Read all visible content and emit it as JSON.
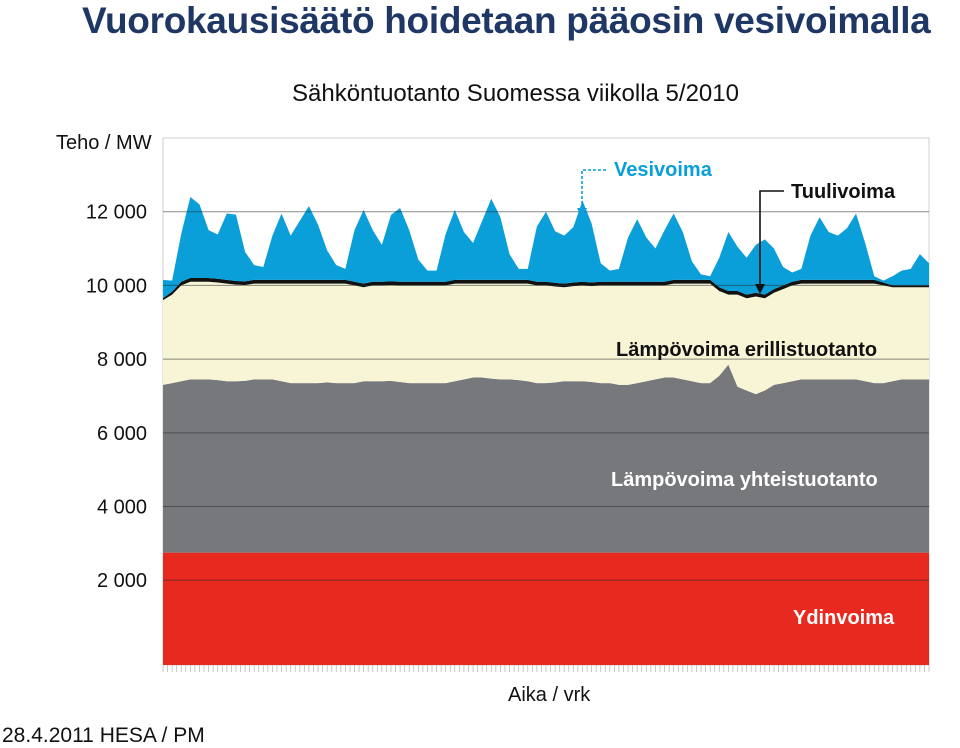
{
  "page": {
    "title": "Vuorokausisäätö hoidetaan pääosin vesivoimalla",
    "footer": "28.4.2011 HESA / PM"
  },
  "chart_data": {
    "type": "area",
    "stacked": true,
    "title": "Sähköntuotanto Suomessa viikolla 5/2010",
    "ylabel": "Teho / MW",
    "xlabel": "Aika / vrk",
    "ylim": [
      0,
      14000
    ],
    "yticks": [
      {
        "value": 2000,
        "label": "2 000"
      },
      {
        "value": 4000,
        "label": "4 000"
      },
      {
        "value": 6000,
        "label": "6 000"
      },
      {
        "value": 8000,
        "label": "8 000"
      },
      {
        "value": 10000,
        "label": "10 000"
      },
      {
        "value": 12000,
        "label": "12 000"
      }
    ],
    "grid": true,
    "x_hours": [
      0,
      2,
      4,
      6,
      8,
      10,
      12,
      14,
      16,
      18,
      20,
      22,
      24,
      26,
      28,
      30,
      32,
      34,
      36,
      38,
      40,
      42,
      44,
      46,
      48,
      50,
      52,
      54,
      56,
      58,
      60,
      62,
      64,
      66,
      68,
      70,
      72,
      74,
      76,
      78,
      80,
      82,
      84,
      86,
      88,
      90,
      92,
      94,
      96,
      98,
      100,
      102,
      104,
      106,
      108,
      110,
      112,
      114,
      116,
      118,
      120,
      122,
      124,
      126,
      128,
      130,
      132,
      134,
      136,
      138,
      140,
      142,
      144,
      146,
      148,
      150,
      152,
      154,
      156,
      158,
      160,
      162,
      164,
      166,
      168
    ],
    "series": [
      {
        "name": "Ydinvoima",
        "color": "#e8291f",
        "label_color": "#ffffff",
        "values": [
          2750,
          2750,
          2750,
          2750,
          2750,
          2750,
          2750,
          2750,
          2750,
          2750,
          2750,
          2750,
          2750,
          2750,
          2750,
          2750,
          2750,
          2750,
          2750,
          2750,
          2750,
          2750,
          2750,
          2750,
          2750,
          2750,
          2750,
          2750,
          2750,
          2750,
          2750,
          2750,
          2750,
          2750,
          2750,
          2750,
          2750,
          2750,
          2750,
          2750,
          2750,
          2750,
          2750,
          2750,
          2750,
          2750,
          2750,
          2750,
          2750,
          2750,
          2750,
          2750,
          2750,
          2750,
          2750,
          2750,
          2750,
          2750,
          2750,
          2750,
          2750,
          2750,
          2750,
          2750,
          2750,
          2750,
          2750,
          2750,
          2750,
          2750,
          2750,
          2750,
          2750,
          2750,
          2750,
          2750,
          2750,
          2750,
          2750,
          2750,
          2750,
          2750,
          2750,
          2750,
          2750
        ]
      },
      {
        "name": "Lämpövoima yhteistuotanto",
        "color": "#77787c",
        "label_color": "#ffffff",
        "values": [
          4550,
          4600,
          4650,
          4700,
          4700,
          4700,
          4680,
          4650,
          4650,
          4660,
          4700,
          4700,
          4700,
          4650,
          4600,
          4600,
          4600,
          4600,
          4620,
          4600,
          4600,
          4600,
          4650,
          4650,
          4650,
          4660,
          4630,
          4600,
          4600,
          4600,
          4600,
          4600,
          4650,
          4700,
          4750,
          4750,
          4720,
          4700,
          4700,
          4680,
          4650,
          4600,
          4600,
          4620,
          4650,
          4650,
          4650,
          4630,
          4600,
          4600,
          4550,
          4550,
          4600,
          4650,
          4700,
          4750,
          4750,
          4700,
          4650,
          4600,
          4600,
          4800,
          5100,
          4500,
          4400,
          4300,
          4400,
          4550,
          4600,
          4650,
          4700,
          4700,
          4700,
          4700,
          4700,
          4700,
          4700,
          4650,
          4600,
          4600,
          4650,
          4700,
          4700,
          4700,
          4700
        ]
      },
      {
        "name": "Lämpövoima erillistuotanto",
        "color": "#f7f5d6",
        "label_color": "#111111",
        "values": [
          2300,
          2400,
          2600,
          2650,
          2650,
          2650,
          2650,
          2650,
          2620,
          2600,
          2600,
          2600,
          2600,
          2650,
          2700,
          2700,
          2700,
          2700,
          2680,
          2700,
          2700,
          2650,
          2550,
          2600,
          2600,
          2600,
          2620,
          2650,
          2650,
          2650,
          2650,
          2650,
          2650,
          2600,
          2550,
          2550,
          2580,
          2600,
          2600,
          2620,
          2650,
          2650,
          2650,
          2600,
          2550,
          2580,
          2600,
          2600,
          2650,
          2650,
          2700,
          2700,
          2650,
          2600,
          2550,
          2500,
          2550,
          2600,
          2650,
          2700,
          2700,
          2300,
          1900,
          2500,
          2500,
          2650,
          2500,
          2500,
          2550,
          2600,
          2600,
          2600,
          2600,
          2600,
          2600,
          2600,
          2600,
          2650,
          2700,
          2650,
          2550,
          2500,
          2500,
          2500,
          2500
        ]
      },
      {
        "name": "Tuulivoima",
        "color": "#111111",
        "label_color": "#111111",
        "values": [
          50,
          80,
          100,
          100,
          100,
          100,
          100,
          100,
          100,
          100,
          100,
          100,
          100,
          100,
          100,
          100,
          100,
          100,
          100,
          100,
          100,
          100,
          100,
          100,
          100,
          100,
          100,
          100,
          100,
          100,
          100,
          100,
          100,
          100,
          100,
          100,
          100,
          100,
          100,
          100,
          100,
          100,
          100,
          100,
          100,
          100,
          100,
          100,
          100,
          100,
          100,
          100,
          100,
          100,
          100,
          100,
          100,
          100,
          100,
          100,
          100,
          100,
          100,
          100,
          100,
          100,
          100,
          100,
          100,
          100,
          100,
          100,
          100,
          100,
          100,
          100,
          100,
          100,
          100,
          80,
          50,
          50,
          50,
          50,
          50
        ]
      },
      {
        "name": "Vesivoima",
        "color": "#0a9fd8",
        "label_color": "#0a9fd8",
        "values": [
          500,
          300,
          1300,
          2200,
          2000,
          1300,
          1200,
          1800,
          1800,
          800,
          400,
          350,
          1200,
          1800,
          1200,
          1600,
          2000,
          1500,
          800,
          400,
          300,
          1400,
          2000,
          1400,
          1000,
          1800,
          2000,
          1400,
          600,
          300,
          300,
          1300,
          1900,
          1300,
          1000,
          1600,
          2200,
          1700,
          700,
          300,
          300,
          1500,
          1900,
          1400,
          1300,
          1500,
          2200,
          1600,
          500,
          300,
          350,
          1200,
          1700,
          1200,
          900,
          1400,
          1800,
          1300,
          500,
          150,
          100,
          800,
          1600,
          1200,
          1000,
          1300,
          1500,
          1100,
          500,
          250,
          300,
          1200,
          1700,
          1300,
          1200,
          1400,
          1800,
          1000,
          100,
          50,
          250,
          400,
          450,
          850,
          600
        ]
      }
    ],
    "annotations": [
      {
        "series": "Vesivoima",
        "text": "Vesivoima"
      },
      {
        "series": "Tuulivoima",
        "text": "Tuulivoima"
      },
      {
        "series": "Lämpövoima erillistuotanto",
        "text": "Lämpövoima erillistuotanto"
      },
      {
        "series": "Lämpövoima yhteistuotanto",
        "text": "Lämpövoima yhteistuotanto"
      },
      {
        "series": "Ydinvoima",
        "text": "Ydinvoima"
      }
    ]
  },
  "colors": {
    "title": "#1e3764",
    "grid": "#2b2b2b",
    "arrow": "#0a9fd8"
  }
}
